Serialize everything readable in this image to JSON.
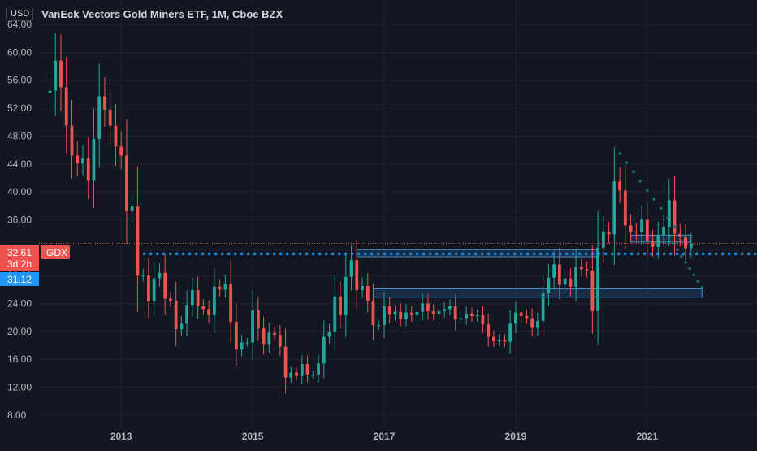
{
  "header": {
    "currency": "USD",
    "title": "VanEck Vectors Gold Miners ETF, 1M, Cboe BZX"
  },
  "colors": {
    "background": "#131722",
    "up": "#26a69a",
    "down": "#ef5350",
    "grid": "#1e222d",
    "axis_text": "#b2b5be",
    "level_line": "#2196f3",
    "zone_fill": "rgba(33,150,243,0.18)",
    "zone_border": "#4e8fd6",
    "projection_dots": "#1f6f68"
  },
  "price_labels": {
    "last": "32.61",
    "symbol": "GDX",
    "countdown": "3d 2h",
    "level": "31.12"
  },
  "chart_data": {
    "type": "candlestick",
    "title": "VanEck Vectors Gold Miners ETF, 1M, Cboe BZX",
    "interval": "1M",
    "ylim": [
      6.0,
      71.0
    ],
    "xlim": [
      "2011-10",
      "2022-08"
    ],
    "y_ticks": [
      "64.00",
      "60.00",
      "56.00",
      "52.00",
      "48.00",
      "44.00",
      "40.00",
      "36.00",
      "28.00",
      "24.00",
      "20.00",
      "16.00",
      "12.00",
      "8.00"
    ],
    "x_ticks": [
      "2013",
      "2015",
      "2017",
      "2019",
      "2021"
    ],
    "grid": true,
    "close_series": [
      [
        "2011-12",
        54.5
      ],
      [
        "2012-01",
        58.8
      ],
      [
        "2012-02",
        55.0
      ],
      [
        "2012-03",
        49.5
      ],
      [
        "2012-04",
        45.2
      ],
      [
        "2012-05",
        44.1
      ],
      [
        "2012-06",
        44.8
      ],
      [
        "2012-07",
        41.6
      ],
      [
        "2012-08",
        47.6
      ],
      [
        "2012-09",
        53.7
      ],
      [
        "2012-10",
        51.8
      ],
      [
        "2012-11",
        49.5
      ],
      [
        "2012-12",
        46.5
      ],
      [
        "2013-01",
        45.2
      ],
      [
        "2013-02",
        37.2
      ],
      [
        "2013-03",
        37.9
      ],
      [
        "2013-04",
        28.0
      ],
      [
        "2013-05",
        28.0
      ],
      [
        "2013-06",
        24.3
      ],
      [
        "2013-07",
        27.6
      ],
      [
        "2013-08",
        28.4
      ],
      [
        "2013-09",
        24.7
      ],
      [
        "2013-10",
        24.4
      ],
      [
        "2013-11",
        20.3
      ],
      [
        "2013-12",
        21.1
      ],
      [
        "2014-01",
        23.8
      ],
      [
        "2014-02",
        25.9
      ],
      [
        "2014-03",
        23.6
      ],
      [
        "2014-04",
        23.2
      ],
      [
        "2014-05",
        22.3
      ],
      [
        "2014-06",
        26.4
      ],
      [
        "2014-07",
        26.0
      ],
      [
        "2014-08",
        26.8
      ],
      [
        "2014-09",
        21.4
      ],
      [
        "2014-10",
        17.4
      ],
      [
        "2014-11",
        18.4
      ],
      [
        "2014-12",
        18.4
      ],
      [
        "2015-01",
        23.0
      ],
      [
        "2015-02",
        20.4
      ],
      [
        "2015-03",
        18.2
      ],
      [
        "2015-04",
        19.8
      ],
      [
        "2015-05",
        19.5
      ],
      [
        "2015-06",
        17.8
      ],
      [
        "2015-07",
        13.4
      ],
      [
        "2015-08",
        14.1
      ],
      [
        "2015-09",
        13.6
      ],
      [
        "2015-10",
        15.3
      ],
      [
        "2015-11",
        13.8
      ],
      [
        "2015-12",
        13.8
      ],
      [
        "2016-01",
        15.4
      ],
      [
        "2016-02",
        19.2
      ],
      [
        "2016-03",
        20.0
      ],
      [
        "2016-04",
        25.0
      ],
      [
        "2016-05",
        22.3
      ],
      [
        "2016-06",
        27.8
      ],
      [
        "2016-07",
        30.2
      ],
      [
        "2016-08",
        25.9
      ],
      [
        "2016-09",
        26.5
      ],
      [
        "2016-10",
        24.4
      ],
      [
        "2016-11",
        20.9
      ],
      [
        "2016-12",
        20.9
      ],
      [
        "2017-01",
        23.6
      ],
      [
        "2017-02",
        22.4
      ],
      [
        "2017-03",
        22.8
      ],
      [
        "2017-04",
        21.8
      ],
      [
        "2017-05",
        22.7
      ],
      [
        "2017-06",
        22.3
      ],
      [
        "2017-07",
        22.8
      ],
      [
        "2017-08",
        24.0
      ],
      [
        "2017-09",
        22.9
      ],
      [
        "2017-10",
        22.5
      ],
      [
        "2017-11",
        22.9
      ],
      [
        "2017-12",
        23.2
      ],
      [
        "2018-01",
        23.6
      ],
      [
        "2018-02",
        21.7
      ],
      [
        "2018-03",
        21.9
      ],
      [
        "2018-04",
        22.5
      ],
      [
        "2018-05",
        22.2
      ],
      [
        "2018-06",
        22.3
      ],
      [
        "2018-07",
        21.0
      ],
      [
        "2018-08",
        19.2
      ],
      [
        "2018-09",
        18.6
      ],
      [
        "2018-10",
        18.8
      ],
      [
        "2018-11",
        18.5
      ],
      [
        "2018-12",
        21.1
      ],
      [
        "2019-01",
        22.7
      ],
      [
        "2019-02",
        22.2
      ],
      [
        "2019-03",
        21.9
      ],
      [
        "2019-04",
        20.5
      ],
      [
        "2019-05",
        21.5
      ],
      [
        "2019-06",
        25.5
      ],
      [
        "2019-07",
        27.7
      ],
      [
        "2019-08",
        29.6
      ],
      [
        "2019-09",
        26.7
      ],
      [
        "2019-10",
        27.6
      ],
      [
        "2019-11",
        26.4
      ],
      [
        "2019-12",
        29.3
      ],
      [
        "2020-01",
        28.9
      ],
      [
        "2020-02",
        28.7
      ],
      [
        "2020-03",
        22.9
      ],
      [
        "2020-04",
        32.0
      ],
      [
        "2020-05",
        34.3
      ],
      [
        "2020-06",
        33.9
      ],
      [
        "2020-07",
        41.5
      ],
      [
        "2020-08",
        40.2
      ],
      [
        "2020-09",
        35.2
      ],
      [
        "2020-10",
        34.3
      ],
      [
        "2020-11",
        34.2
      ],
      [
        "2020-12",
        36.0
      ],
      [
        "2021-01",
        33.0
      ],
      [
        "2021-02",
        32.1
      ],
      [
        "2021-03",
        33.8
      ],
      [
        "2021-04",
        35.0
      ],
      [
        "2021-05",
        38.8
      ],
      [
        "2021-06",
        34.0
      ],
      [
        "2021-07",
        33.5
      ],
      [
        "2021-08",
        31.9
      ],
      [
        "2021-09",
        32.61
      ]
    ],
    "horizontal_levels": [
      31.12
    ],
    "zones": [
      {
        "from": "2016-08",
        "to": "2020-04",
        "low": 30.7,
        "high": 31.7
      },
      {
        "from": "2016-11",
        "to": "2021-11",
        "low": 24.9,
        "high": 26.1
      },
      {
        "from": "2020-10",
        "to": "2021-09",
        "low": 32.8,
        "high": 33.8
      }
    ],
    "projections": [
      {
        "from": "2020-08",
        "to": "2021-06",
        "start": 45.5,
        "end": 35.0
      },
      {
        "from": "2021-05",
        "to": "2021-11",
        "start": 33.5,
        "end": 26.3
      }
    ]
  }
}
